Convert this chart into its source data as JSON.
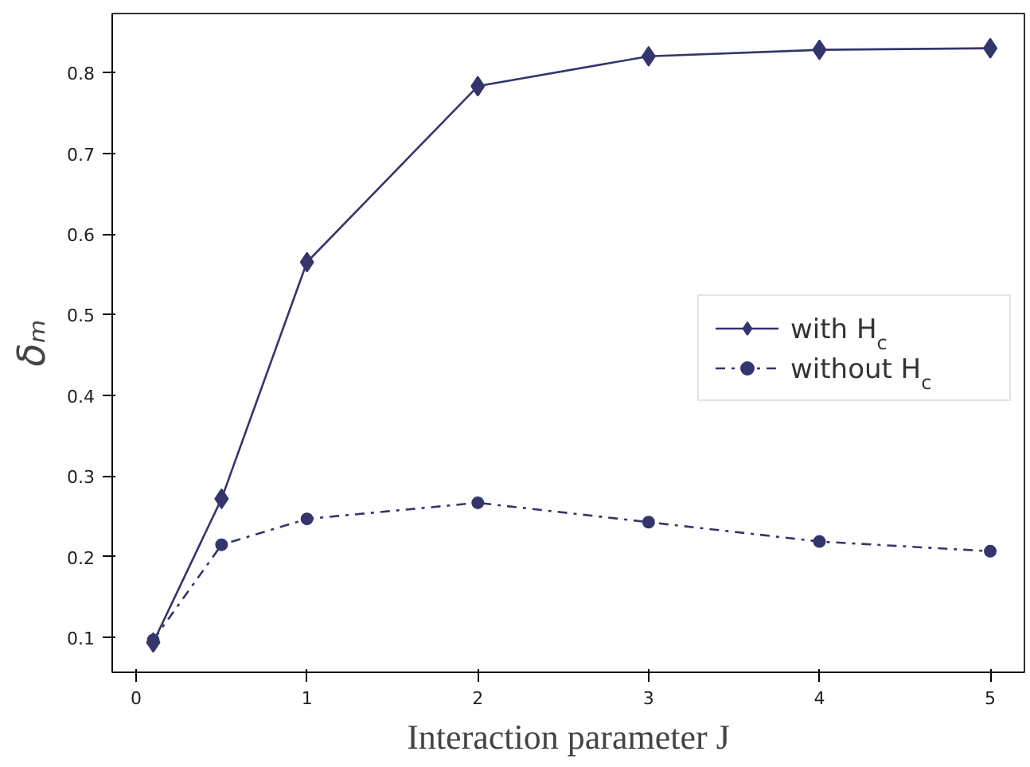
{
  "chart_data": {
    "type": "line",
    "xlabel": "Interaction parameter J",
    "ylabel": "δₘ",
    "x": [
      0.1,
      0.5,
      1,
      2,
      3,
      4,
      5
    ],
    "series": [
      {
        "name": "with H$_{c}$",
        "color": "#35356e",
        "marker": "diamond",
        "line_style": "solid",
        "values": [
          0.094,
          0.272,
          0.565,
          0.783,
          0.82,
          0.828,
          0.83
        ]
      },
      {
        "name": "without H$_{c}$",
        "color": "#35356e",
        "marker": "circle",
        "line_style": "dashdot",
        "values": [
          0.097,
          0.215,
          0.247,
          0.267,
          0.243,
          0.219,
          0.207
        ]
      }
    ],
    "xlim": [
      -0.14,
      5.2
    ],
    "ylim": [
      0.057,
      0.873
    ],
    "xticks": [
      0,
      1,
      2,
      3,
      4,
      5
    ],
    "yticks": [
      0.1,
      0.2,
      0.3,
      0.4,
      0.5,
      0.6,
      0.7,
      0.8
    ],
    "grid": false,
    "legend": "right"
  }
}
